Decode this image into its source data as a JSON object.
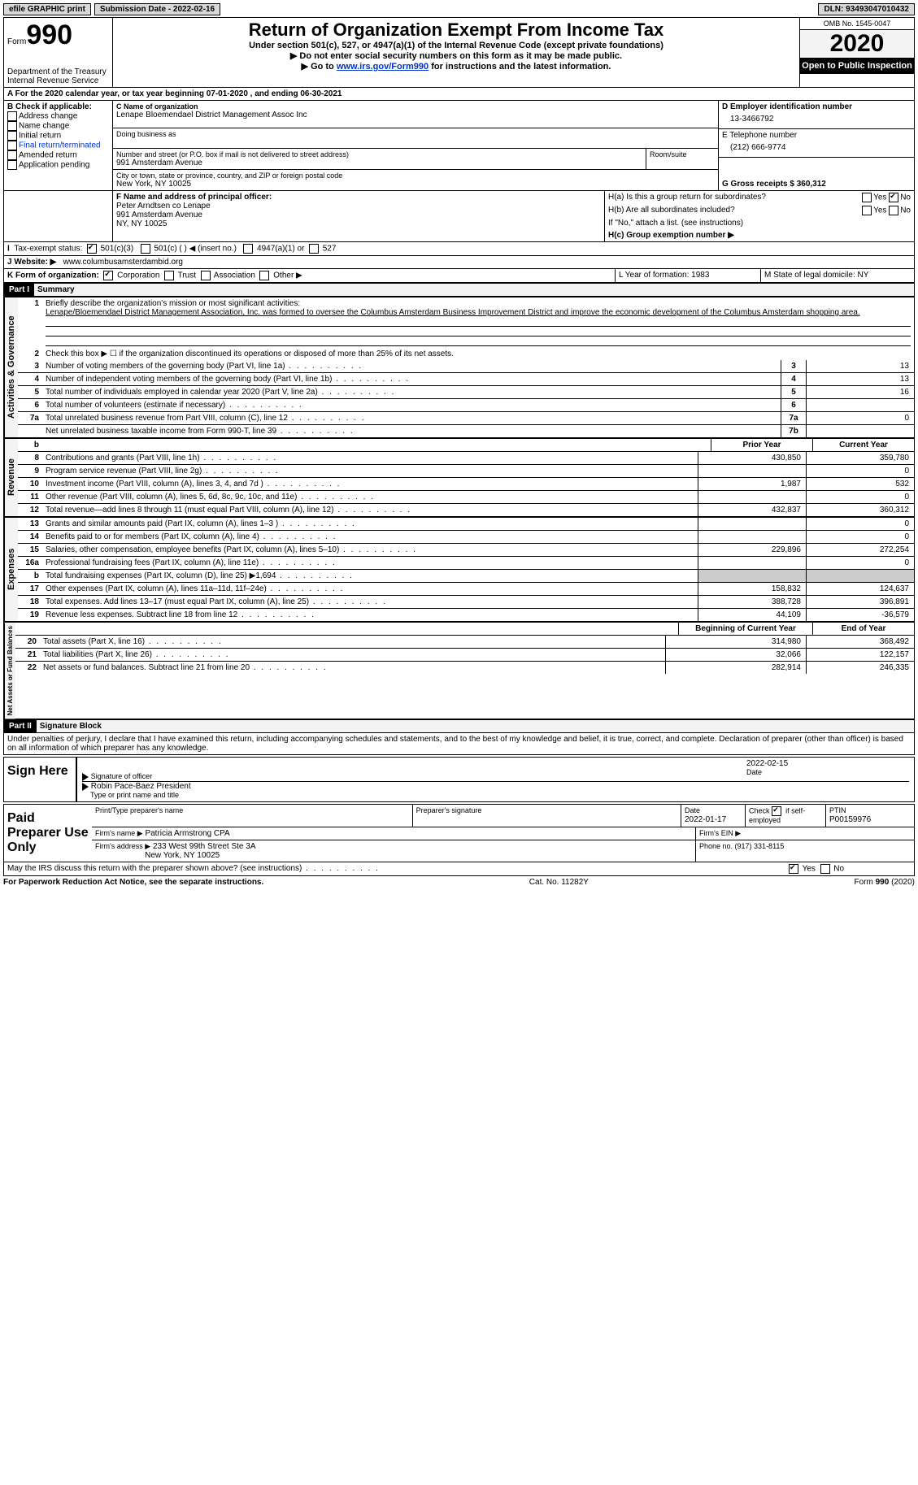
{
  "topbar": {
    "efile": "efile GRAPHIC print",
    "submission_label": "Submission Date - 2022-02-16",
    "dln_label": "DLN: 93493047010432"
  },
  "header": {
    "form_label": "Form",
    "form_number": "990",
    "dept1": "Department of the Treasury",
    "dept2": "Internal Revenue Service",
    "title": "Return of Organization Exempt From Income Tax",
    "subtitle1": "Under section 501(c), 527, or 4947(a)(1) of the Internal Revenue Code (except private foundations)",
    "subtitle2": "▶ Do not enter social security numbers on this form as it may be made public.",
    "subtitle3a": "▶ Go to ",
    "subtitle3_link": "www.irs.gov/Form990",
    "subtitle3b": " for instructions and the latest information.",
    "omb": "OMB No. 1545-0047",
    "year": "2020",
    "open": "Open to Public Inspection"
  },
  "lineA": "For the 2020 calendar year, or tax year beginning 07-01-2020   , and ending 06-30-2021",
  "boxB": {
    "label": "B Check if applicable:",
    "items": [
      "Address change",
      "Name change",
      "Initial return",
      "Final return/terminated",
      "Amended return",
      "Application pending"
    ]
  },
  "boxC": {
    "label_name": "C Name of organization",
    "name": "Lenape Bloemendael District Management Assoc Inc",
    "dba_label": "Doing business as",
    "addr_label": "Number and street (or P.O. box if mail is not delivered to street address)",
    "room_label": "Room/suite",
    "addr": "991 Amsterdam Avenue",
    "city_label": "City or town, state or province, country, and ZIP or foreign postal code",
    "city": "New York, NY  10025"
  },
  "boxD": {
    "label": "D Employer identification number",
    "value": "13-3466792"
  },
  "boxE": {
    "label": "E Telephone number",
    "value": "(212) 666-9774"
  },
  "boxG": {
    "label": "G Gross receipts $ 360,312"
  },
  "boxF": {
    "label": "F Name and address of principal officer:",
    "name": "Peter Arndtsen co Lenape",
    "addr1": "991 Amsterdam Avenue",
    "addr2": "NY, NY  10025"
  },
  "boxH": {
    "ha": "H(a)  Is this a group return for subordinates?",
    "hb": "H(b)  Are all subordinates included?",
    "hb_note": "If \"No,\" attach a list. (see instructions)",
    "hc": "H(c)  Group exemption number ▶",
    "yes": "Yes",
    "no": "No"
  },
  "boxI": {
    "label": "Tax-exempt status:",
    "opt1": "501(c)(3)",
    "opt2": "501(c) (  ) ◀ (insert no.)",
    "opt3": "4947(a)(1) or",
    "opt4": "527"
  },
  "boxJ": {
    "label": "J   Website: ▶",
    "value": "www.columbusamsterdambid.org"
  },
  "boxK": {
    "label": "K Form of organization:",
    "opts": [
      "Corporation",
      "Trust",
      "Association",
      "Other ▶"
    ]
  },
  "boxL": "L Year of formation: 1983",
  "boxM": "M State of legal domicile: NY",
  "part1": {
    "label": "Part I",
    "title": "Summary"
  },
  "mission_label": "Briefly describe the organization's mission or most significant activities:",
  "mission": "Lenape/Bloemendael District Management Association, Inc. was formed to oversee the Columbus Amsterdam Business Improvement District and improve the economic development of the Columbus Amsterdam shopping area.",
  "line2": "Check this box ▶ ☐  if the organization discontinued its operations or disposed of more than 25% of its net assets.",
  "rows_gov": [
    {
      "n": "3",
      "d": "Number of voting members of the governing body (Part VI, line 1a)",
      "box": "3",
      "v": "13"
    },
    {
      "n": "4",
      "d": "Number of independent voting members of the governing body (Part VI, line 1b)",
      "box": "4",
      "v": "13"
    },
    {
      "n": "5",
      "d": "Total number of individuals employed in calendar year 2020 (Part V, line 2a)",
      "box": "5",
      "v": "16"
    },
    {
      "n": "6",
      "d": "Total number of volunteers (estimate if necessary)",
      "box": "6",
      "v": ""
    },
    {
      "n": "7a",
      "d": "Total unrelated business revenue from Part VIII, column (C), line 12",
      "box": "7a",
      "v": "0"
    },
    {
      "n": "",
      "d": "Net unrelated business taxable income from Form 990-T, line 39",
      "box": "7b",
      "v": ""
    }
  ],
  "col_prior": "Prior Year",
  "col_current": "Current Year",
  "col_begin": "Beginning of Current Year",
  "col_end": "End of Year",
  "rows_rev": [
    {
      "n": "8",
      "d": "Contributions and grants (Part VIII, line 1h)",
      "p": "430,850",
      "c": "359,780"
    },
    {
      "n": "9",
      "d": "Program service revenue (Part VIII, line 2g)",
      "p": "",
      "c": "0"
    },
    {
      "n": "10",
      "d": "Investment income (Part VIII, column (A), lines 3, 4, and 7d )",
      "p": "1,987",
      "c": "532"
    },
    {
      "n": "11",
      "d": "Other revenue (Part VIII, column (A), lines 5, 6d, 8c, 9c, 10c, and 11e)",
      "p": "",
      "c": "0"
    },
    {
      "n": "12",
      "d": "Total revenue—add lines 8 through 11 (must equal Part VIII, column (A), line 12)",
      "p": "432,837",
      "c": "360,312"
    }
  ],
  "rows_exp": [
    {
      "n": "13",
      "d": "Grants and similar amounts paid (Part IX, column (A), lines 1–3 )",
      "p": "",
      "c": "0"
    },
    {
      "n": "14",
      "d": "Benefits paid to or for members (Part IX, column (A), line 4)",
      "p": "",
      "c": "0"
    },
    {
      "n": "15",
      "d": "Salaries, other compensation, employee benefits (Part IX, column (A), lines 5–10)",
      "p": "229,896",
      "c": "272,254"
    },
    {
      "n": "16a",
      "d": "Professional fundraising fees (Part IX, column (A), line 11e)",
      "p": "",
      "c": "0"
    },
    {
      "n": "b",
      "d": "Total fundraising expenses (Part IX, column (D), line 25) ▶1,694",
      "p": "grey",
      "c": "grey"
    },
    {
      "n": "17",
      "d": "Other expenses (Part IX, column (A), lines 11a–11d, 11f–24e)",
      "p": "158,832",
      "c": "124,637"
    },
    {
      "n": "18",
      "d": "Total expenses. Add lines 13–17 (must equal Part IX, column (A), line 25)",
      "p": "388,728",
      "c": "396,891"
    },
    {
      "n": "19",
      "d": "Revenue less expenses. Subtract line 18 from line 12",
      "p": "44,109",
      "c": "-36,579"
    }
  ],
  "rows_net": [
    {
      "n": "20",
      "d": "Total assets (Part X, line 16)",
      "p": "314,980",
      "c": "368,492"
    },
    {
      "n": "21",
      "d": "Total liabilities (Part X, line 26)",
      "p": "32,066",
      "c": "122,157"
    },
    {
      "n": "22",
      "d": "Net assets or fund balances. Subtract line 21 from line 20",
      "p": "282,914",
      "c": "246,335"
    }
  ],
  "side_labels": {
    "gov": "Activities & Governance",
    "rev": "Revenue",
    "exp": "Expenses",
    "net": "Net Assets or Fund Balances"
  },
  "part2": {
    "label": "Part II",
    "title": "Signature Block",
    "penalty": "Under penalties of perjury, I declare that I have examined this return, including accompanying schedules and statements, and to the best of my knowledge and belief, it is true, correct, and complete. Declaration of preparer (other than officer) is based on all information of which preparer has any knowledge."
  },
  "sign": {
    "here": "Sign Here",
    "sig_label": "Signature of officer",
    "date_label": "Date",
    "date": "2022-02-15",
    "name": "Robin Pace-Baez  President",
    "name_label": "Type or print name and title"
  },
  "prep": {
    "label": "Paid Preparer Use Only",
    "c1": "Print/Type preparer's name",
    "c2": "Preparer's signature",
    "c3": "Date",
    "date": "2022-01-17",
    "c4a": "Check",
    "c4b": "if self-employed",
    "c5": "PTIN",
    "ptin": "P00159976",
    "firm_name_label": "Firm's name    ▶",
    "firm_name": "Patricia Armstrong CPA",
    "firm_ein_label": "Firm's EIN ▶",
    "firm_addr_label": "Firm's address ▶",
    "firm_addr1": "233 West 99th Street Ste 3A",
    "firm_addr2": "New York, NY  10025",
    "phone_label": "Phone no. (917) 331-8115"
  },
  "discuss": "May the IRS discuss this return with the preparer shown above? (see instructions)",
  "footer": {
    "left": "For Paperwork Reduction Act Notice, see the separate instructions.",
    "mid": "Cat. No. 11282Y",
    "right": "Form 990 (2020)"
  }
}
